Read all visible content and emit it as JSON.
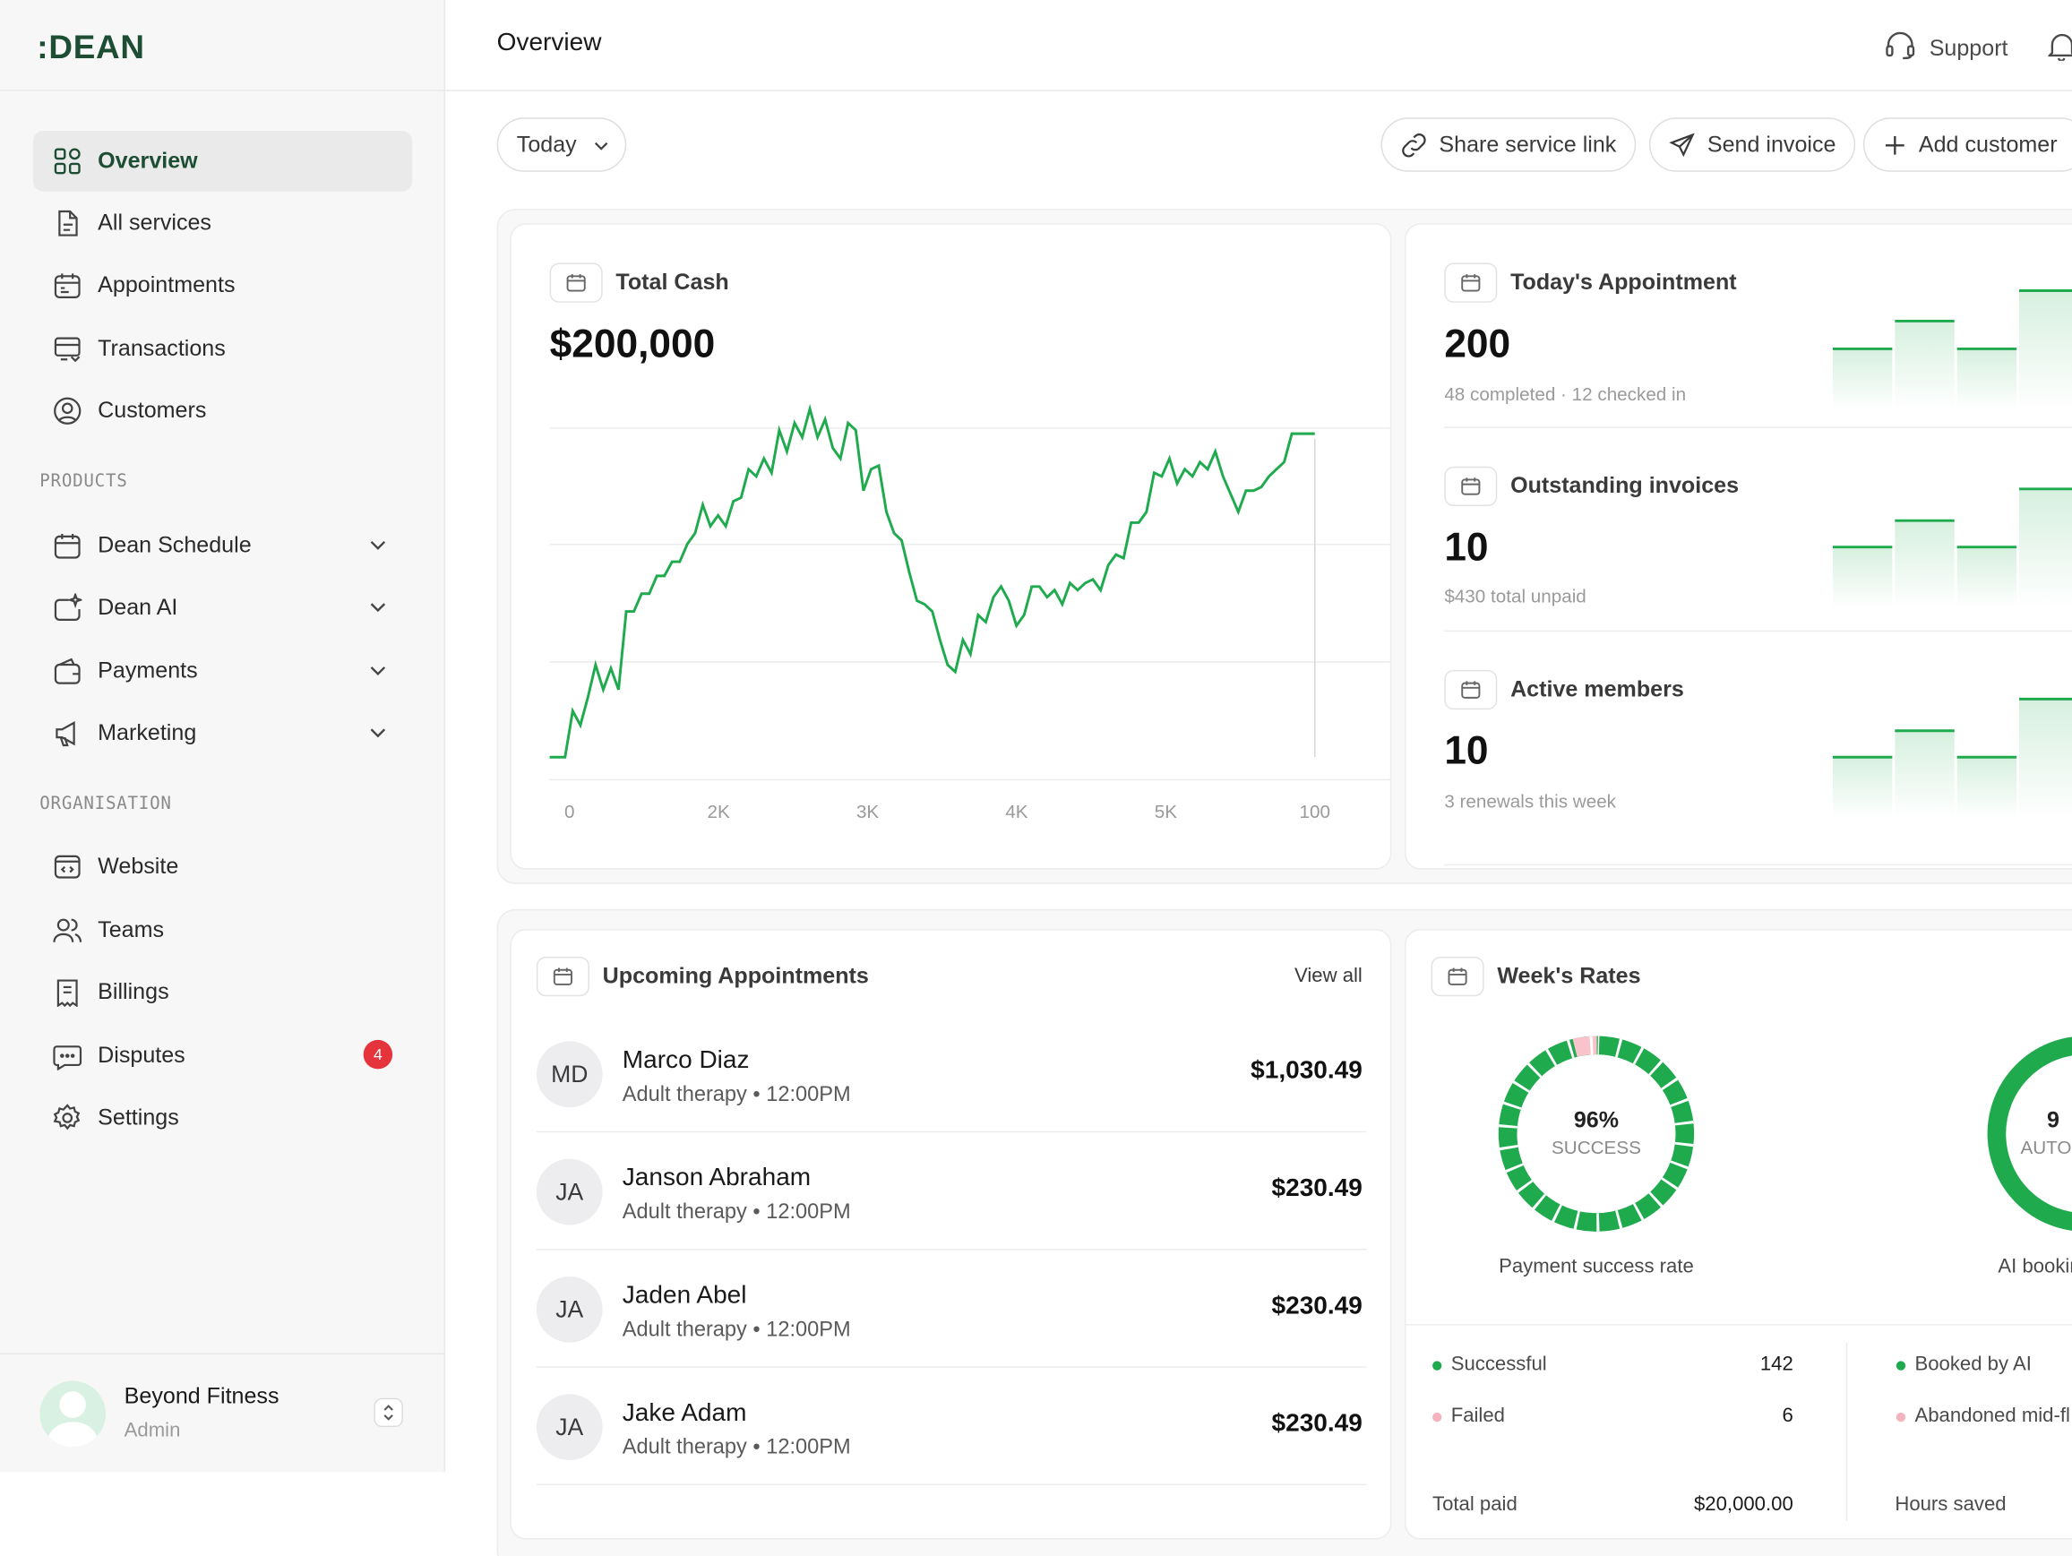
{
  "brand": ":DEAN",
  "header": {
    "title": "Overview",
    "support_label": "Support"
  },
  "sidebar": {
    "main_items": [
      {
        "label": "Overview",
        "icon": "grid-icon"
      },
      {
        "label": "All services",
        "icon": "document-icon"
      },
      {
        "label": "Appointments",
        "icon": "calendar-icon"
      },
      {
        "label": "Transactions",
        "icon": "wallet-icon"
      },
      {
        "label": "Customers",
        "icon": "user-circle-icon"
      }
    ],
    "products_label": "PRODUCTS",
    "products": [
      {
        "label": "Dean Schedule",
        "icon": "calendar-icon"
      },
      {
        "label": "Dean AI",
        "icon": "sparkle-icon"
      },
      {
        "label": "Payments",
        "icon": "wallet-icon"
      },
      {
        "label": "Marketing",
        "icon": "megaphone-icon"
      }
    ],
    "org_label": "ORGANISATION",
    "org_items": [
      {
        "label": "Website",
        "icon": "code-window-icon"
      },
      {
        "label": "Teams",
        "icon": "users-icon"
      },
      {
        "label": "Billings",
        "icon": "receipt-icon"
      },
      {
        "label": "Disputes",
        "icon": "chat-icon",
        "badge": "4"
      },
      {
        "label": "Settings",
        "icon": "gear-icon"
      }
    ],
    "account": {
      "name": "Beyond Fitness",
      "role": "Admin"
    }
  },
  "toolbar": {
    "date_filter": "Today",
    "share_link": "Share service link",
    "send_invoice": "Send invoice",
    "add_customer": "Add customer"
  },
  "total_cash": {
    "title": "Total Cash",
    "value": "$200,000"
  },
  "chart_data": {
    "type": "line",
    "title": "Total Cash",
    "x_tick_labels": [
      "0",
      "2K",
      "3K",
      "4K",
      "5K",
      "100"
    ],
    "values": [
      0,
      0,
      0,
      13,
      9,
      17,
      26,
      19,
      25,
      19,
      41,
      41,
      46,
      46,
      51,
      51,
      55,
      55,
      60,
      63,
      71,
      65,
      68,
      65,
      72,
      73,
      81,
      79,
      84,
      80,
      92,
      86,
      94,
      90,
      98,
      90,
      95,
      87,
      84,
      94,
      92,
      75,
      81,
      82,
      69,
      63,
      61,
      52,
      44,
      43,
      41,
      33,
      26,
      24,
      33,
      29,
      40,
      38,
      45,
      48,
      44,
      37,
      40,
      48,
      48,
      45,
      47,
      43,
      49,
      47,
      49,
      50,
      47,
      54,
      57,
      56,
      66,
      66,
      69,
      80,
      79,
      84,
      77,
      81,
      79,
      83,
      81,
      86,
      79,
      74,
      69,
      75,
      75,
      76,
      79,
      81,
      83,
      91,
      91,
      91,
      91
    ],
    "series_color": "#1faa4e",
    "grid": true
  },
  "stats": [
    {
      "title": "Today's Appointment",
      "value": "200",
      "sub": "48 completed · 12 checked in"
    },
    {
      "title": "Outstanding invoices",
      "value": "10",
      "sub": "$430 total unpaid"
    },
    {
      "title": "Active members",
      "value": "10",
      "sub": "3 renewals this week"
    }
  ],
  "upcoming": {
    "title": "Upcoming Appointments",
    "view_all": "View all",
    "rows": [
      {
        "initials": "MD",
        "name": "Marco Diaz",
        "meta": "Adult therapy • 12:00PM",
        "amount": "$1,030.49"
      },
      {
        "initials": "JA",
        "name": "Janson Abraham",
        "meta": "Adult therapy • 12:00PM",
        "amount": "$230.49"
      },
      {
        "initials": "JA",
        "name": "Jaden Abel",
        "meta": "Adult therapy • 12:00PM",
        "amount": "$230.49"
      },
      {
        "initials": "JA",
        "name": "Jake Adam",
        "meta": "Adult therapy • 12:00PM",
        "amount": "$230.49"
      }
    ]
  },
  "rates": {
    "title": "Week's Rates",
    "payment": {
      "percent": "96%",
      "percent_value": 96,
      "label": "SUCCESS",
      "caption": "Payment success rate"
    },
    "ai": {
      "percent": "9",
      "label": "AUTO",
      "caption": "AI bookir"
    },
    "legend_left": [
      {
        "label": "Successful",
        "value": "142",
        "color": "#1faa4e"
      },
      {
        "label": "Failed",
        "value": "6",
        "color": "#f5b3bd"
      }
    ],
    "legend_right": [
      {
        "label": "Booked by AI",
        "color": "#1faa4e"
      },
      {
        "label": "Abandoned mid-fl",
        "color": "#f5b3bd"
      }
    ],
    "total_paid_label": "Total paid",
    "total_paid_value": "$20,000.00",
    "hours_saved_label": "Hours saved"
  }
}
